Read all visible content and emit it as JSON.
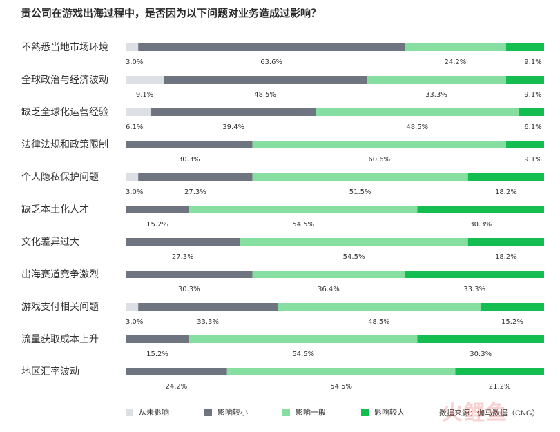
{
  "title": "贵公司在游戏出海过程中，是否因为以下问题对业务造成过影响？",
  "source": "数据来源：伽马数据（CNG）",
  "watermark": "火鲤鱼",
  "colors": {
    "never": "#dcdfe3",
    "small": "#6e7580",
    "general": "#86dea0",
    "large": "#13bd4f"
  },
  "legend": [
    {
      "key": "never",
      "label": "从未影响"
    },
    {
      "key": "small",
      "label": "影响较小"
    },
    {
      "key": "general",
      "label": "影响一般"
    },
    {
      "key": "large",
      "label": "影响较大"
    }
  ],
  "chart_data": {
    "type": "bar",
    "orientation": "horizontal",
    "stacked": true,
    "unit": "%",
    "title": "贵公司在游戏出海过程中，是否因为以下问题对业务造成过影响？",
    "categories": [
      "不熟悉当地市场环境",
      "全球政治与经济波动",
      "缺乏全球化运营经验",
      "法律法规和政策限制",
      "个人隐私保护问题",
      "缺乏本土化人才",
      "文化差异过大",
      "出海赛道竞争激烈",
      "游戏支付相关问题",
      "流量获取成本上升",
      "地区汇率波动"
    ],
    "series": [
      {
        "name": "从未影响",
        "key": "never",
        "values": [
          3.0,
          9.1,
          6.1,
          0,
          3.0,
          0,
          0,
          0,
          3.0,
          0,
          0
        ]
      },
      {
        "name": "影响较小",
        "key": "small",
        "values": [
          63.6,
          48.5,
          39.4,
          30.3,
          27.3,
          15.2,
          27.3,
          30.3,
          33.3,
          15.2,
          24.2
        ]
      },
      {
        "name": "影响一般",
        "key": "general",
        "values": [
          24.2,
          33.3,
          48.5,
          60.6,
          51.5,
          54.5,
          54.5,
          36.4,
          48.5,
          54.5,
          54.5
        ]
      },
      {
        "name": "影响较大",
        "key": "large",
        "values": [
          9.1,
          9.1,
          6.1,
          9.1,
          18.2,
          30.3,
          18.2,
          33.3,
          15.2,
          30.3,
          21.2
        ]
      }
    ],
    "xlim": [
      0,
      100
    ],
    "legend_position": "bottom"
  }
}
